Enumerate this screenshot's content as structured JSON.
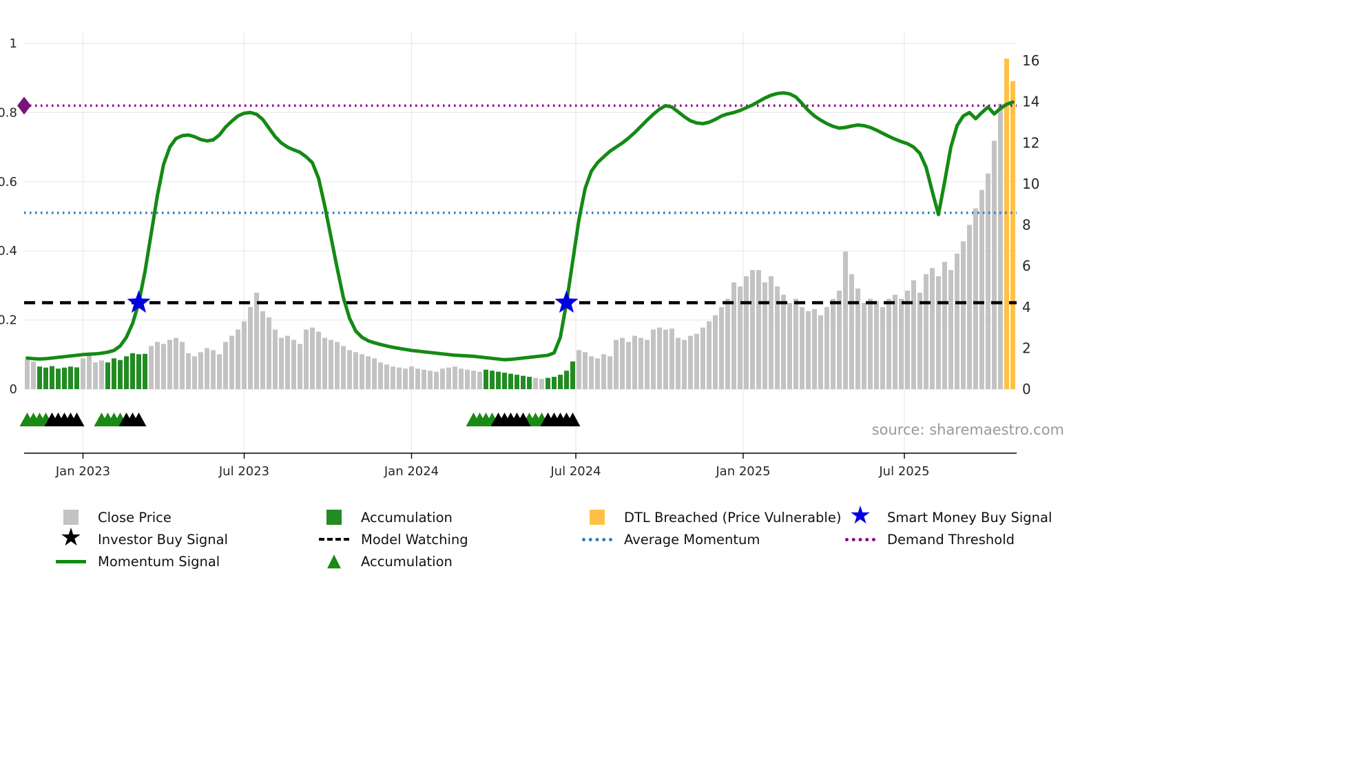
{
  "icons": {
    "star": "★",
    "triangle": "▲"
  },
  "source": {
    "text": "source: sharemaestro.com"
  },
  "legend": {
    "items": [
      {
        "label": "Close Price",
        "swatch": "square",
        "color": "#c3c3c3"
      },
      {
        "label": "Accumulation",
        "swatch": "square",
        "color": "#228b22"
      },
      {
        "label": "DTL Breached (Price Vulnerable)",
        "swatch": "square",
        "color": "#ffc145"
      },
      {
        "label": "Smart Money Buy Signal",
        "swatch": "star",
        "color": "#0000e0"
      },
      {
        "label": "Investor Buy Signal",
        "swatch": "star",
        "color": "#000000"
      },
      {
        "label": "Model Watching",
        "swatch": "dashed-line",
        "color": "#000000"
      },
      {
        "label": "Average Momentum",
        "swatch": "dotted-line",
        "color": "#2e7ebc"
      },
      {
        "label": "Demand Threshold",
        "swatch": "dotted-line",
        "color": "#8b008b"
      },
      {
        "label": "Momentum Signal",
        "swatch": "solid-line",
        "color": "#148a14"
      },
      {
        "label": "Accumulation",
        "swatch": "triangle",
        "color": "#1a8a14"
      }
    ]
  },
  "chart_data": {
    "type": "bar",
    "description": "Weekly close price bars (right axis) with momentum signal line (left axis), accumulation highlighting, threshold lines and buy-signal markers",
    "x_ticks": [
      {
        "label": "Jan 2023",
        "index": 9
      },
      {
        "label": "Jul 2023",
        "index": 35
      },
      {
        "label": "Jan 2024",
        "index": 62
      },
      {
        "label": "Jul 2024",
        "index": 88.5
      },
      {
        "label": "Jan 2025",
        "index": 115.5
      },
      {
        "label": "Jul 2025",
        "index": 141.5
      }
    ],
    "axes": {
      "left": {
        "ticks": [
          0,
          0.2,
          0.4,
          0.6,
          0.8,
          1
        ],
        "tick_labels": [
          "0",
          "0.2",
          "0.4",
          "0.6",
          "0.8",
          "1"
        ],
        "range": [
          0,
          1
        ]
      },
      "right": {
        "ticks": [
          0,
          2,
          4,
          6,
          8,
          10,
          12,
          14,
          16
        ],
        "range": [
          0,
          16
        ]
      }
    },
    "colors": {
      "close_price": "#c3c3c3",
      "accumulation": "#228b22",
      "dtl_breached": "#ffc145",
      "momentum": "#148a14",
      "smart_money": "#0000e0",
      "investor": "#000000",
      "accumulation_triangle": "#1a8a14",
      "demand_marker": "#7a1578",
      "axis_text": "#262626",
      "grid": "#e9e9e9",
      "source_text": "#999999"
    },
    "bars": {
      "name": "Close Price",
      "values": [
        1.45,
        1.35,
        1.1,
        1.05,
        1.12,
        1.0,
        1.05,
        1.1,
        1.06,
        1.5,
        1.65,
        1.3,
        1.4,
        1.3,
        1.5,
        1.42,
        1.6,
        1.75,
        1.7,
        1.72,
        2.1,
        2.3,
        2.2,
        2.4,
        2.5,
        2.3,
        1.75,
        1.6,
        1.8,
        2.0,
        1.9,
        1.7,
        2.3,
        2.6,
        2.9,
        3.3,
        4.0,
        4.7,
        3.8,
        3.5,
        2.9,
        2.5,
        2.6,
        2.4,
        2.2,
        2.9,
        3.0,
        2.8,
        2.5,
        2.4,
        2.3,
        2.1,
        1.9,
        1.8,
        1.7,
        1.6,
        1.5,
        1.3,
        1.2,
        1.1,
        1.05,
        1.0,
        1.1,
        1.0,
        0.95,
        0.9,
        0.85,
        1.0,
        1.05,
        1.1,
        1.0,
        0.95,
        0.9,
        0.85,
        0.95,
        0.9,
        0.85,
        0.8,
        0.75,
        0.7,
        0.65,
        0.6,
        0.55,
        0.5,
        0.55,
        0.6,
        0.7,
        0.9,
        1.35,
        1.9,
        1.8,
        1.6,
        1.5,
        1.7,
        1.6,
        2.4,
        2.5,
        2.3,
        2.6,
        2.5,
        2.4,
        2.9,
        3.0,
        2.9,
        2.95,
        2.5,
        2.4,
        2.6,
        2.7,
        3.0,
        3.3,
        3.6,
        4.0,
        4.4,
        5.2,
        5.0,
        5.5,
        5.8,
        5.8,
        5.2,
        5.5,
        5.0,
        4.6,
        4.2,
        4.4,
        4.0,
        3.8,
        3.9,
        3.6,
        4.0,
        4.4,
        4.8,
        6.7,
        5.6,
        4.9,
        4.2,
        4.4,
        4.3,
        4.0,
        4.4,
        4.6,
        4.4,
        4.8,
        5.3,
        4.7,
        5.6,
        5.9,
        5.5,
        6.2,
        5.8,
        6.6,
        7.2,
        8.0,
        8.8,
        9.7,
        10.5,
        12.1,
        13.9,
        16.1,
        15.0
      ],
      "accumulation_ranges": [
        [
          2,
          8
        ],
        [
          13,
          19
        ],
        [
          74,
          81
        ],
        [
          84,
          88
        ]
      ],
      "dtl_breached_ranges": [
        [
          158,
          159
        ]
      ]
    },
    "momentum": {
      "name": "Momentum Signal",
      "values": [
        0.09,
        0.088,
        0.087,
        0.088,
        0.09,
        0.092,
        0.094,
        0.096,
        0.098,
        0.1,
        0.101,
        0.102,
        0.104,
        0.107,
        0.112,
        0.125,
        0.15,
        0.19,
        0.25,
        0.34,
        0.45,
        0.56,
        0.65,
        0.7,
        0.725,
        0.733,
        0.735,
        0.73,
        0.722,
        0.718,
        0.721,
        0.735,
        0.758,
        0.775,
        0.79,
        0.798,
        0.8,
        0.795,
        0.78,
        0.755,
        0.73,
        0.712,
        0.7,
        0.692,
        0.685,
        0.672,
        0.655,
        0.61,
        0.53,
        0.44,
        0.35,
        0.265,
        0.205,
        0.168,
        0.15,
        0.14,
        0.134,
        0.129,
        0.125,
        0.121,
        0.118,
        0.115,
        0.112,
        0.11,
        0.108,
        0.106,
        0.104,
        0.102,
        0.1,
        0.098,
        0.097,
        0.096,
        0.095,
        0.093,
        0.091,
        0.089,
        0.087,
        0.085,
        0.086,
        0.088,
        0.09,
        0.092,
        0.094,
        0.096,
        0.098,
        0.105,
        0.15,
        0.25,
        0.37,
        0.49,
        0.58,
        0.63,
        0.655,
        0.672,
        0.688,
        0.7,
        0.712,
        0.726,
        0.742,
        0.76,
        0.778,
        0.795,
        0.81,
        0.82,
        0.816,
        0.802,
        0.788,
        0.776,
        0.77,
        0.768,
        0.772,
        0.78,
        0.79,
        0.796,
        0.8,
        0.806,
        0.814,
        0.822,
        0.832,
        0.842,
        0.85,
        0.855,
        0.857,
        0.854,
        0.845,
        0.826,
        0.806,
        0.79,
        0.778,
        0.768,
        0.76,
        0.755,
        0.757,
        0.761,
        0.764,
        0.762,
        0.757,
        0.749,
        0.74,
        0.731,
        0.723,
        0.716,
        0.71,
        0.7,
        0.682,
        0.642,
        0.572,
        0.505,
        0.6,
        0.7,
        0.762,
        0.79,
        0.8,
        0.782,
        0.8,
        0.816,
        0.796,
        0.812,
        0.824,
        0.83
      ]
    },
    "hlines": [
      {
        "name": "Model Watching",
        "value": 0.25,
        "style": "dashed",
        "color": "#000000"
      },
      {
        "name": "Average Momentum",
        "value": 0.51,
        "style": "dotted",
        "color": "#2e7ebc"
      },
      {
        "name": "Demand Threshold",
        "value": 0.82,
        "style": "dotted",
        "color": "#8b008b"
      }
    ],
    "markers": {
      "smart_money_buy_stars": [
        {
          "index": 18,
          "value": 0.25
        },
        {
          "index": 87,
          "value": 0.25
        }
      ],
      "demand_threshold_diamond": {
        "value": 0.82
      },
      "accumulation_triangles": [
        0,
        1,
        2,
        3,
        12,
        13,
        14,
        15,
        72,
        73,
        74,
        75,
        81,
        82,
        83
      ],
      "investor_buy_triangles": [
        4,
        5,
        6,
        7,
        8,
        16,
        17,
        18,
        76,
        77,
        78,
        79,
        80,
        84,
        85,
        86,
        87,
        88
      ]
    }
  }
}
